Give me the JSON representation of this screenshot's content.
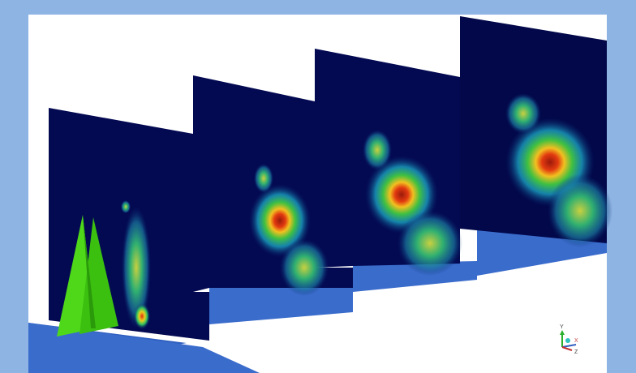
{
  "axis_triad": {
    "y": "Y",
    "x": "X",
    "z": "Z"
  }
}
